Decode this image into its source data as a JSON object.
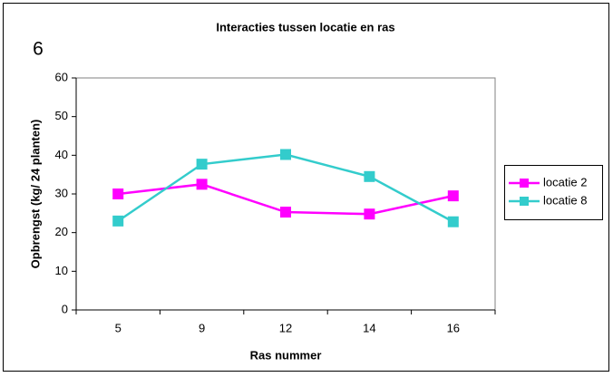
{
  "chart_data": {
    "type": "line",
    "title": "Interacties tussen locatie en ras",
    "annotation": "6",
    "x_label": "Ras nummer",
    "y_label": "Opbrengst (kg/ 24 planten)",
    "categories": [
      "5",
      "9",
      "12",
      "14",
      "16"
    ],
    "series": [
      {
        "name": "locatie 2",
        "color": "#ff00ff",
        "values": [
          30,
          32.5,
          25.3,
          24.8,
          29.5
        ]
      },
      {
        "name": "locatie 8",
        "color": "#33cccc",
        "values": [
          23,
          37.7,
          40.2,
          34.5,
          22.8
        ]
      }
    ],
    "ylim": [
      0,
      60
    ],
    "yticks": [
      0,
      10,
      20,
      30,
      40,
      50,
      60
    ],
    "grid": false,
    "legend": "right"
  }
}
